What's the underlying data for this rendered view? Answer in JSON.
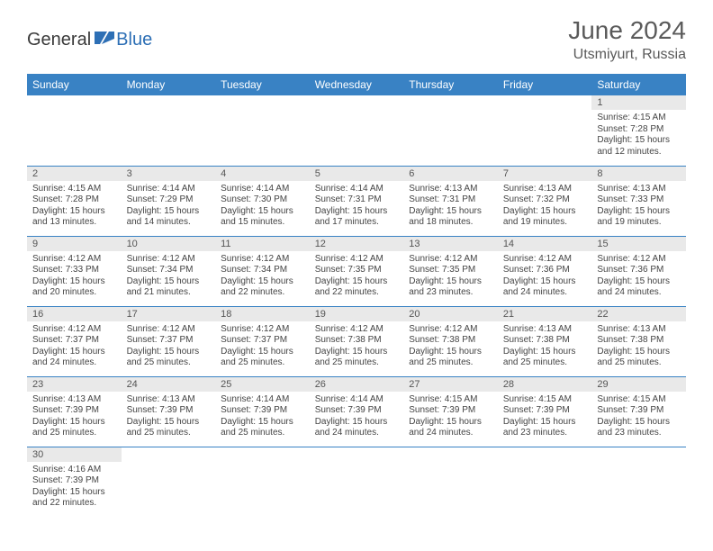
{
  "brand": {
    "part1": "General",
    "part2": "Blue"
  },
  "title": "June 2024",
  "location": "Utsmiyurt, Russia",
  "colors": {
    "header_bg": "#3982c4",
    "header_text": "#ffffff",
    "daynum_bg": "#e9e9e9",
    "cell_border": "#3982c4",
    "brand_blue": "#2d6fb5",
    "text_muted": "#5a5a5a"
  },
  "weekdays": [
    "Sunday",
    "Monday",
    "Tuesday",
    "Wednesday",
    "Thursday",
    "Friday",
    "Saturday"
  ],
  "weeks": [
    [
      null,
      null,
      null,
      null,
      null,
      null,
      {
        "n": "1",
        "sr": "4:15 AM",
        "ss": "7:28 PM",
        "dl": "15 hours and 12 minutes."
      }
    ],
    [
      {
        "n": "2",
        "sr": "4:15 AM",
        "ss": "7:28 PM",
        "dl": "15 hours and 13 minutes."
      },
      {
        "n": "3",
        "sr": "4:14 AM",
        "ss": "7:29 PM",
        "dl": "15 hours and 14 minutes."
      },
      {
        "n": "4",
        "sr": "4:14 AM",
        "ss": "7:30 PM",
        "dl": "15 hours and 15 minutes."
      },
      {
        "n": "5",
        "sr": "4:14 AM",
        "ss": "7:31 PM",
        "dl": "15 hours and 17 minutes."
      },
      {
        "n": "6",
        "sr": "4:13 AM",
        "ss": "7:31 PM",
        "dl": "15 hours and 18 minutes."
      },
      {
        "n": "7",
        "sr": "4:13 AM",
        "ss": "7:32 PM",
        "dl": "15 hours and 19 minutes."
      },
      {
        "n": "8",
        "sr": "4:13 AM",
        "ss": "7:33 PM",
        "dl": "15 hours and 19 minutes."
      }
    ],
    [
      {
        "n": "9",
        "sr": "4:12 AM",
        "ss": "7:33 PM",
        "dl": "15 hours and 20 minutes."
      },
      {
        "n": "10",
        "sr": "4:12 AM",
        "ss": "7:34 PM",
        "dl": "15 hours and 21 minutes."
      },
      {
        "n": "11",
        "sr": "4:12 AM",
        "ss": "7:34 PM",
        "dl": "15 hours and 22 minutes."
      },
      {
        "n": "12",
        "sr": "4:12 AM",
        "ss": "7:35 PM",
        "dl": "15 hours and 22 minutes."
      },
      {
        "n": "13",
        "sr": "4:12 AM",
        "ss": "7:35 PM",
        "dl": "15 hours and 23 minutes."
      },
      {
        "n": "14",
        "sr": "4:12 AM",
        "ss": "7:36 PM",
        "dl": "15 hours and 24 minutes."
      },
      {
        "n": "15",
        "sr": "4:12 AM",
        "ss": "7:36 PM",
        "dl": "15 hours and 24 minutes."
      }
    ],
    [
      {
        "n": "16",
        "sr": "4:12 AM",
        "ss": "7:37 PM",
        "dl": "15 hours and 24 minutes."
      },
      {
        "n": "17",
        "sr": "4:12 AM",
        "ss": "7:37 PM",
        "dl": "15 hours and 25 minutes."
      },
      {
        "n": "18",
        "sr": "4:12 AM",
        "ss": "7:37 PM",
        "dl": "15 hours and 25 minutes."
      },
      {
        "n": "19",
        "sr": "4:12 AM",
        "ss": "7:38 PM",
        "dl": "15 hours and 25 minutes."
      },
      {
        "n": "20",
        "sr": "4:12 AM",
        "ss": "7:38 PM",
        "dl": "15 hours and 25 minutes."
      },
      {
        "n": "21",
        "sr": "4:13 AM",
        "ss": "7:38 PM",
        "dl": "15 hours and 25 minutes."
      },
      {
        "n": "22",
        "sr": "4:13 AM",
        "ss": "7:38 PM",
        "dl": "15 hours and 25 minutes."
      }
    ],
    [
      {
        "n": "23",
        "sr": "4:13 AM",
        "ss": "7:39 PM",
        "dl": "15 hours and 25 minutes."
      },
      {
        "n": "24",
        "sr": "4:13 AM",
        "ss": "7:39 PM",
        "dl": "15 hours and 25 minutes."
      },
      {
        "n": "25",
        "sr": "4:14 AM",
        "ss": "7:39 PM",
        "dl": "15 hours and 25 minutes."
      },
      {
        "n": "26",
        "sr": "4:14 AM",
        "ss": "7:39 PM",
        "dl": "15 hours and 24 minutes."
      },
      {
        "n": "27",
        "sr": "4:15 AM",
        "ss": "7:39 PM",
        "dl": "15 hours and 24 minutes."
      },
      {
        "n": "28",
        "sr": "4:15 AM",
        "ss": "7:39 PM",
        "dl": "15 hours and 23 minutes."
      },
      {
        "n": "29",
        "sr": "4:15 AM",
        "ss": "7:39 PM",
        "dl": "15 hours and 23 minutes."
      }
    ],
    [
      {
        "n": "30",
        "sr": "4:16 AM",
        "ss": "7:39 PM",
        "dl": "15 hours and 22 minutes."
      },
      null,
      null,
      null,
      null,
      null,
      null
    ]
  ],
  "labels": {
    "sunrise": "Sunrise: ",
    "sunset": "Sunset: ",
    "daylight": "Daylight: "
  }
}
